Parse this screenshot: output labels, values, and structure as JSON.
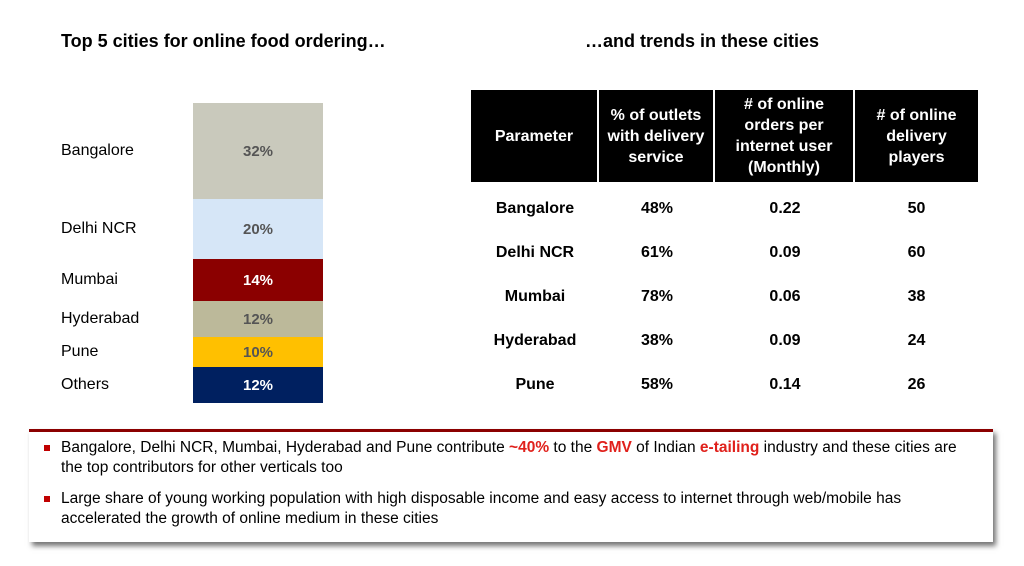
{
  "titles": {
    "left": "Top 5 cities for online food ordering…",
    "right": "…and trends in these cities"
  },
  "chart_data": {
    "type": "bar",
    "categories": [
      "Bangalore",
      "Delhi NCR",
      "Mumbai",
      "Hyderabad",
      "Pune",
      "Others"
    ],
    "values": [
      32,
      20,
      14,
      12,
      10,
      12
    ],
    "value_labels": [
      "32%",
      "20%",
      "14%",
      "12%",
      "10%",
      "12%"
    ],
    "colors": [
      "#c9c9bc",
      "#d6e6f7",
      "#8b0000",
      "#bcb99a",
      "#ffc000",
      "#002060"
    ],
    "label_colors": [
      "#555555",
      "#555555",
      "#ffffff",
      "#555555",
      "#555555",
      "#ffffff"
    ],
    "stacked": true,
    "ylim": [
      0,
      100
    ],
    "legend": "none",
    "grid": false
  },
  "table": {
    "headers": [
      "Parameter",
      "% of outlets with delivery service",
      "# of online orders per internet user (Monthly)",
      "# of online delivery players"
    ],
    "rows": [
      [
        "Bangalore",
        "48%",
        "0.22",
        "50"
      ],
      [
        "Delhi NCR",
        "61%",
        "0.09",
        "60"
      ],
      [
        "Mumbai",
        "78%",
        "0.06",
        "38"
      ],
      [
        "Hyderabad",
        "38%",
        "0.09",
        "24"
      ],
      [
        "Pune",
        "58%",
        "0.14",
        "26"
      ]
    ]
  },
  "notes": [
    {
      "parts": [
        {
          "text": "Bangalore, Delhi NCR, Mumbai, Hyderabad and Pune contribute "
        },
        {
          "text": "~40%",
          "highlight": true
        },
        {
          "text": " to the "
        },
        {
          "text": "GMV",
          "highlight": true
        },
        {
          "text": " of Indian "
        },
        {
          "text": "e-tailing",
          "highlight": true
        },
        {
          "text": " industry and these cities are the top contributors for other verticals too"
        }
      ]
    },
    {
      "parts": [
        {
          "text": "Large share of young working population with high disposable income and easy access to internet through web/mobile has accelerated the growth of online medium in these cities"
        }
      ]
    }
  ],
  "accent_color": "#e0201b"
}
